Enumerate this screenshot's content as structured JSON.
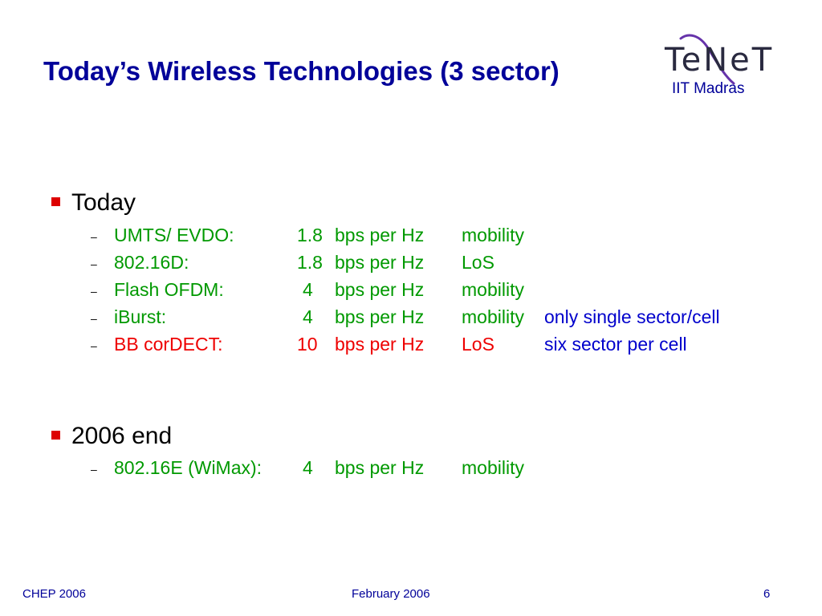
{
  "title": "Today’s Wireless Technologies (3 sector)",
  "logo": {
    "wordmark": "TeNeT",
    "subtitle": "IIT Madras"
  },
  "section_today": {
    "heading": "Today",
    "rows": [
      {
        "tech": "UMTS/ EVDO:",
        "num": "1.8",
        "unit": "bps per Hz",
        "mode": "mobility",
        "note": ""
      },
      {
        "tech": "802.16D:",
        "num": "1.8",
        "unit": "bps per Hz",
        "mode": "LoS",
        "note": ""
      },
      {
        "tech": "Flash OFDM:",
        "num": "4",
        "unit": "bps per Hz",
        "mode": "mobility",
        "note": ""
      },
      {
        "tech": "iBurst:",
        "num": "4",
        "unit": "bps per Hz",
        "mode": "mobility",
        "note": "only single sector/cell"
      },
      {
        "tech": "BB corDECT:",
        "num": "10",
        "unit": "bps per Hz",
        "mode": "LoS",
        "note": "six sector per cell"
      }
    ]
  },
  "section_2006": {
    "heading": "2006 end",
    "rows": [
      {
        "tech": "802.16E (WiMax):",
        "num": "4",
        "unit": "bps per Hz",
        "mode": "mobility",
        "note": ""
      }
    ]
  },
  "footer": {
    "left": "CHEP 2006",
    "center": "February 2006",
    "page": "6"
  },
  "colors": {
    "title": "#000099",
    "row_text": "#009900",
    "highlight_row": "#ee0000",
    "note_text": "#0000cc",
    "bullet": "#dd0000"
  }
}
